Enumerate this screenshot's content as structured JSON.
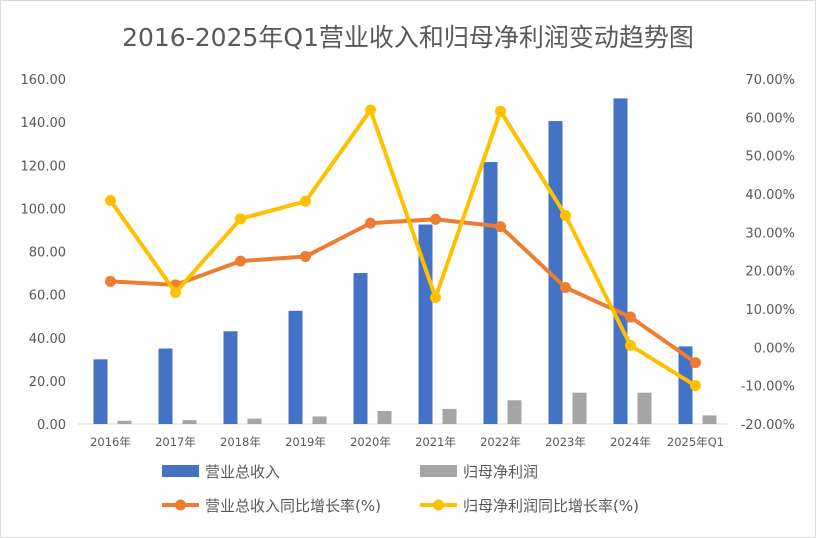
{
  "chart_data": {
    "type": "bar+line",
    "title": "2016-2025年Q1营业收入和归母净利润变动趋势图",
    "categories": [
      "2016年",
      "2017年",
      "2018年",
      "2019年",
      "2020年",
      "2021年",
      "2022年",
      "2023年",
      "2024年",
      "2025年Q1"
    ],
    "y_left": {
      "lim": [
        0,
        160
      ],
      "ticks": [
        "0.00",
        "20.00",
        "40.00",
        "60.00",
        "80.00",
        "100.00",
        "120.00",
        "140.00",
        "160.00"
      ]
    },
    "y_right": {
      "lim": [
        -20,
        70
      ],
      "ticks": [
        "-20.00%",
        "-10.00%",
        "0.00%",
        "10.00%",
        "20.00%",
        "30.00%",
        "40.00%",
        "50.00%",
        "60.00%",
        "70.00%"
      ]
    },
    "series": [
      {
        "name": "营业总收入",
        "kind": "bar",
        "axis": "left",
        "color": "#4472C4",
        "values": [
          30.0,
          35.0,
          43.0,
          52.5,
          70.0,
          92.5,
          121.5,
          140.5,
          151.0,
          36.0
        ]
      },
      {
        "name": "归母净利润",
        "kind": "bar",
        "axis": "left",
        "color": "#A5A5A5",
        "values": [
          1.5,
          1.8,
          2.5,
          3.5,
          6.0,
          7.0,
          11.0,
          14.5,
          14.5,
          4.0
        ]
      },
      {
        "name": "营业总收入同比增长率(%)",
        "kind": "line",
        "axis": "right",
        "color": "#ED7D31",
        "values": [
          17.2,
          16.3,
          22.5,
          23.7,
          32.4,
          33.4,
          31.5,
          15.6,
          7.9,
          -4.0
        ]
      },
      {
        "name": "归母净利润同比增长率(%)",
        "kind": "line",
        "axis": "right",
        "color": "#FFC000",
        "values": [
          38.3,
          14.3,
          33.5,
          38.1,
          61.9,
          13.0,
          61.6,
          34.4,
          0.5,
          -10.0
        ]
      }
    ],
    "legend_position": "bottom",
    "grid": false
  }
}
